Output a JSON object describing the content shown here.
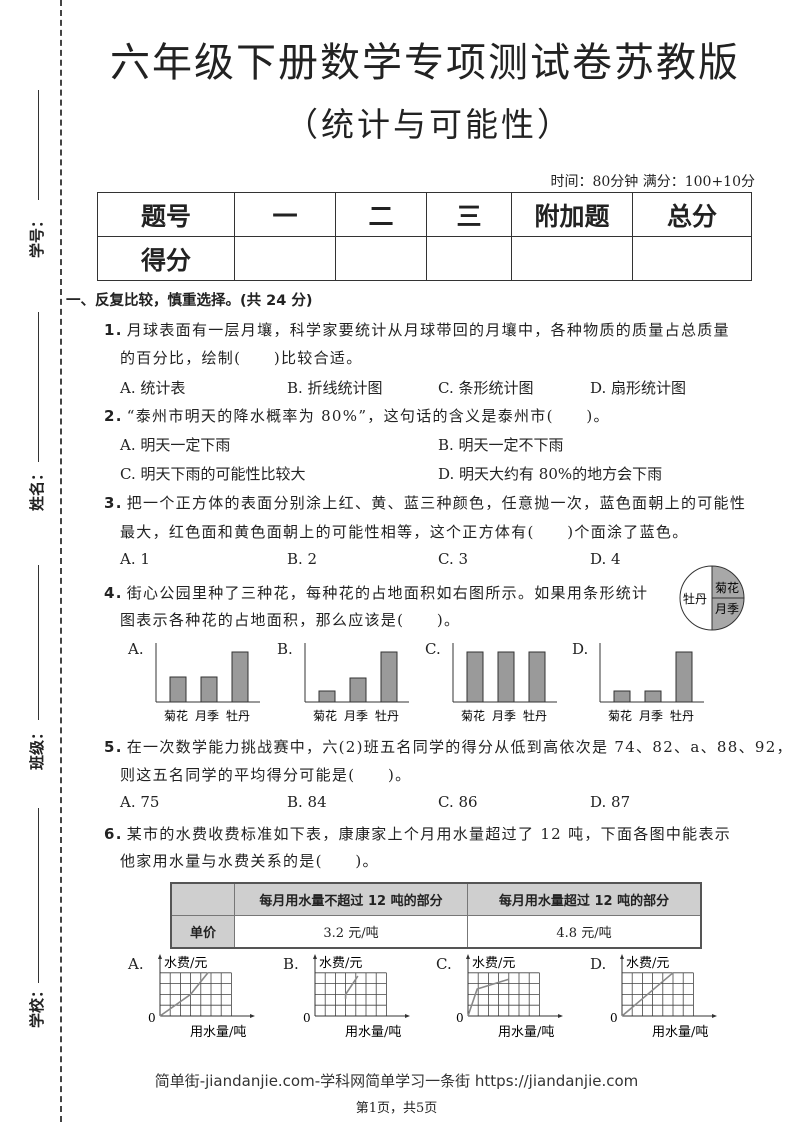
{
  "header": {
    "title": "六年级下册数学专项测试卷苏教版",
    "subtitle": "（统计与可能性）",
    "meta": "时间：80分钟  满分：100+10分"
  },
  "side_labels": [
    "学号：",
    "姓名：",
    "班级：",
    "学校："
  ],
  "score_table": {
    "headers": [
      "题号",
      "一",
      "二",
      "三",
      "附加题",
      "总分"
    ],
    "row_label": "得分"
  },
  "section1": "一、反复比较，慎重选择。(共 24 分)",
  "questions": [
    {
      "num": "1.",
      "lines": [
        "月球表面有一层月壤，科学家要统计从月球带回的月壤中，各种物质的质量占总质量",
        "的百分比，绘制(　　)比较合适。"
      ],
      "options": [
        "A. 统计表",
        "B. 折线统计图",
        "C. 条形统计图",
        "D. 扇形统计图"
      ]
    },
    {
      "num": "2.",
      "lines": [
        "“泰州市明天的降水概率为 80%”，这句话的含义是泰州市(　　)。"
      ],
      "options": [
        "A. 明天一定下雨",
        "B. 明天一定不下雨",
        "C. 明天下雨的可能性比较大",
        "D. 明天大约有 80%的地方会下雨"
      ]
    },
    {
      "num": "3.",
      "lines": [
        "把一个正方体的表面分别涂上红、黄、蓝三种颜色，任意抛一次，蓝色面朝上的可能性",
        "最大，红色面和黄色面朝上的可能性相等，这个正方体有(　　)个面涂了蓝色。"
      ],
      "options": [
        "A. 1",
        "B. 2",
        "C. 3",
        "D. 4"
      ]
    },
    {
      "num": "4.",
      "lines": [
        "街心公园里种了三种花，每种花的占地面积如右图所示。如果用条形统计",
        "图表示各种花的占地面积，那么应该是(　　)。"
      ],
      "options": [
        "A.",
        "B.",
        "C.",
        "D."
      ]
    },
    {
      "num": "5.",
      "lines": [
        "在一次数学能力挑战赛中，六(2)班五名同学的得分从低到高依次是 74、82、a、88、92，",
        "则这五名同学的平均得分可能是(　　)。"
      ],
      "options": [
        "A. 75",
        "B. 84",
        "C. 86",
        "D. 87"
      ]
    },
    {
      "num": "6.",
      "lines": [
        "某市的水费收费标准如下表，康康家上个月用水量超过了 12 吨，下面各图中能表示",
        "他家用水量与水费关系的是(　　)。"
      ],
      "options": [
        "A.",
        "B.",
        "C.",
        "D."
      ]
    }
  ],
  "pie": {
    "labels": [
      "牡丹",
      "菊花",
      "月季"
    ],
    "shares": [
      0.5,
      0.25,
      0.25
    ],
    "colors": [
      "#ffffff",
      "#a8a8a8",
      "#a8a8a8"
    ]
  },
  "bar_charts": {
    "categories": [
      "菊花",
      "月季",
      "牡丹"
    ],
    "bar_color": "#9a9a9a",
    "options": [
      [
        0.5,
        0.5,
        1
      ],
      [
        0.22,
        0.48,
        1
      ],
      [
        1,
        1,
        1
      ],
      [
        0.22,
        0.22,
        1
      ]
    ]
  },
  "fee_table": {
    "headers": [
      "",
      "每月用水量不超过 12 吨的部分",
      "每月用水量超过 12 吨的部分"
    ],
    "row_label": "单价",
    "values": [
      "3.2 元/吨",
      "4.8 元/吨"
    ]
  },
  "line_graphs": {
    "ylabel": "水费/元",
    "xlabel": "用水量/吨",
    "origin": "0",
    "options": [
      [
        [
          0,
          0
        ],
        [
          3,
          2
        ],
        [
          4.7,
          4
        ]
      ],
      [
        [
          3,
          1.6
        ],
        [
          3,
          2
        ],
        [
          4.2,
          3.7
        ]
      ],
      [
        [
          0,
          0
        ],
        [
          0.9,
          2.5
        ],
        [
          4,
          3.4
        ]
      ],
      [
        [
          0,
          0
        ],
        [
          5,
          4
        ]
      ]
    ]
  },
  "footer": {
    "site": "简单街-jiandanjie.com-学科网简单学习一条街 https://jiandanjie.com",
    "page": "第1页，共5页"
  }
}
